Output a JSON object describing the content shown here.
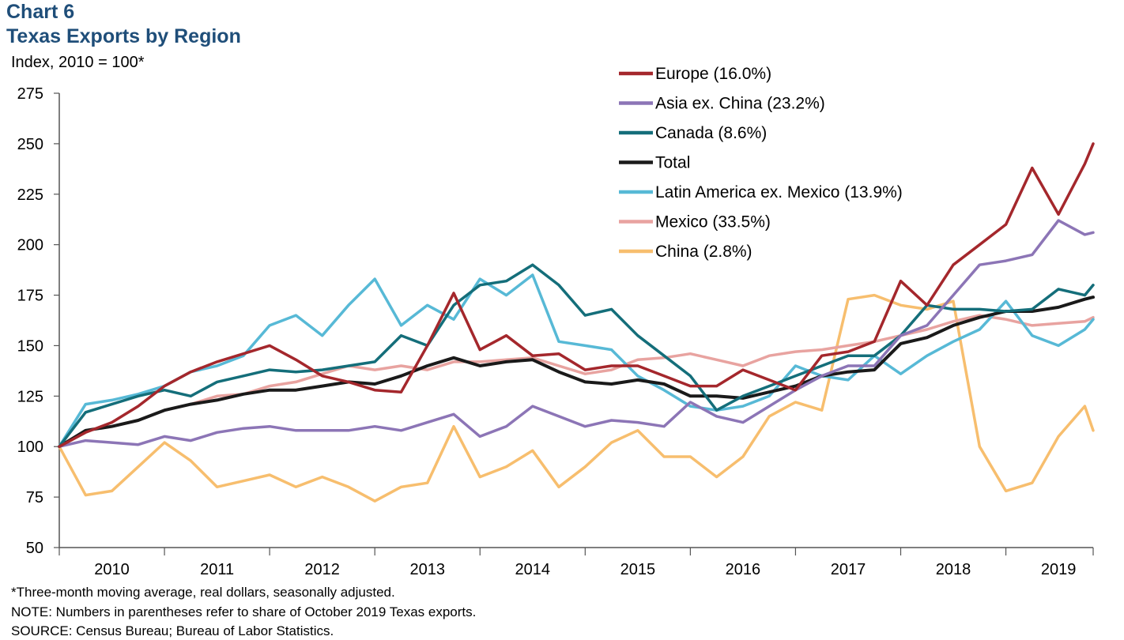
{
  "chart_number": "Chart 6",
  "title": "Texas Exports by Region",
  "footnotes": {
    "note1": "*Three-month moving average, real dollars, seasonally adjusted.",
    "note2": "NOTE: Numbers in parentheses refer to share of October 2019 Texas exports.",
    "source": "SOURCE: Census Bureau; Bureau of Labor Statistics."
  },
  "chart_data": {
    "type": "line",
    "title": "Texas Exports by Region",
    "ylabel": "Index, 2010 = 100*",
    "xlabel": "",
    "ylim": [
      50,
      275
    ],
    "yticks": [
      50,
      75,
      100,
      125,
      150,
      175,
      200,
      225,
      250,
      275
    ],
    "xlim": [
      2010.0,
      2019.83
    ],
    "xticks": [
      "2010",
      "2011",
      "2012",
      "2013",
      "2014",
      "2015",
      "2016",
      "2017",
      "2018",
      "2019"
    ],
    "grid": false,
    "legend": "top-right",
    "series": [
      {
        "name": "Europe (16.0%)",
        "color": "#a4272c",
        "points": [
          [
            2010.0,
            100
          ],
          [
            2010.25,
            107
          ],
          [
            2010.5,
            112
          ],
          [
            2010.75,
            120
          ],
          [
            2011.0,
            130
          ],
          [
            2011.25,
            137
          ],
          [
            2011.5,
            142
          ],
          [
            2011.75,
            146
          ],
          [
            2012.0,
            150
          ],
          [
            2012.25,
            143
          ],
          [
            2012.5,
            135
          ],
          [
            2012.75,
            132
          ],
          [
            2013.0,
            128
          ],
          [
            2013.25,
            127
          ],
          [
            2013.5,
            150
          ],
          [
            2013.75,
            176
          ],
          [
            2014.0,
            148
          ],
          [
            2014.25,
            155
          ],
          [
            2014.5,
            145
          ],
          [
            2014.75,
            146
          ],
          [
            2015.0,
            138
          ],
          [
            2015.25,
            140
          ],
          [
            2015.5,
            140
          ],
          [
            2015.75,
            135
          ],
          [
            2016.0,
            130
          ],
          [
            2016.25,
            130
          ],
          [
            2016.5,
            138
          ],
          [
            2016.75,
            133
          ],
          [
            2017.0,
            128
          ],
          [
            2017.25,
            145
          ],
          [
            2017.5,
            147
          ],
          [
            2017.75,
            152
          ],
          [
            2018.0,
            182
          ],
          [
            2018.25,
            170
          ],
          [
            2018.5,
            190
          ],
          [
            2018.75,
            200
          ],
          [
            2019.0,
            210
          ],
          [
            2019.25,
            238
          ],
          [
            2019.5,
            215
          ],
          [
            2019.75,
            240
          ],
          [
            2019.83,
            250
          ]
        ]
      },
      {
        "name": "Asia ex. China (23.2%)",
        "color": "#8c75b6",
        "points": [
          [
            2010.0,
            100
          ],
          [
            2010.25,
            103
          ],
          [
            2010.5,
            102
          ],
          [
            2010.75,
            101
          ],
          [
            2011.0,
            105
          ],
          [
            2011.25,
            103
          ],
          [
            2011.5,
            107
          ],
          [
            2011.75,
            109
          ],
          [
            2012.0,
            110
          ],
          [
            2012.25,
            108
          ],
          [
            2012.5,
            108
          ],
          [
            2012.75,
            108
          ],
          [
            2013.0,
            110
          ],
          [
            2013.25,
            108
          ],
          [
            2013.5,
            112
          ],
          [
            2013.75,
            116
          ],
          [
            2014.0,
            105
          ],
          [
            2014.25,
            110
          ],
          [
            2014.5,
            120
          ],
          [
            2014.75,
            115
          ],
          [
            2015.0,
            110
          ],
          [
            2015.25,
            113
          ],
          [
            2015.5,
            112
          ],
          [
            2015.75,
            110
          ],
          [
            2016.0,
            122
          ],
          [
            2016.25,
            115
          ],
          [
            2016.5,
            112
          ],
          [
            2016.75,
            120
          ],
          [
            2017.0,
            128
          ],
          [
            2017.25,
            135
          ],
          [
            2017.5,
            140
          ],
          [
            2017.75,
            140
          ],
          [
            2018.0,
            155
          ],
          [
            2018.25,
            160
          ],
          [
            2018.5,
            175
          ],
          [
            2018.75,
            190
          ],
          [
            2019.0,
            192
          ],
          [
            2019.25,
            195
          ],
          [
            2019.5,
            212
          ],
          [
            2019.75,
            205
          ],
          [
            2019.83,
            206
          ]
        ]
      },
      {
        "name": "Canada (8.6%)",
        "color": "#146e7a",
        "points": [
          [
            2010.0,
            100
          ],
          [
            2010.25,
            117
          ],
          [
            2010.5,
            121
          ],
          [
            2010.75,
            125
          ],
          [
            2011.0,
            128
          ],
          [
            2011.25,
            125
          ],
          [
            2011.5,
            132
          ],
          [
            2011.75,
            135
          ],
          [
            2012.0,
            138
          ],
          [
            2012.25,
            137
          ],
          [
            2012.5,
            138
          ],
          [
            2012.75,
            140
          ],
          [
            2013.0,
            142
          ],
          [
            2013.25,
            155
          ],
          [
            2013.5,
            150
          ],
          [
            2013.75,
            170
          ],
          [
            2014.0,
            180
          ],
          [
            2014.25,
            182
          ],
          [
            2014.5,
            190
          ],
          [
            2014.75,
            180
          ],
          [
            2015.0,
            165
          ],
          [
            2015.25,
            168
          ],
          [
            2015.5,
            155
          ],
          [
            2015.75,
            145
          ],
          [
            2016.0,
            135
          ],
          [
            2016.25,
            118
          ],
          [
            2016.5,
            125
          ],
          [
            2016.75,
            130
          ],
          [
            2017.0,
            135
          ],
          [
            2017.25,
            140
          ],
          [
            2017.5,
            145
          ],
          [
            2017.75,
            145
          ],
          [
            2018.0,
            155
          ],
          [
            2018.25,
            170
          ],
          [
            2018.5,
            168
          ],
          [
            2018.75,
            168
          ],
          [
            2019.0,
            167
          ],
          [
            2019.25,
            168
          ],
          [
            2019.5,
            178
          ],
          [
            2019.75,
            175
          ],
          [
            2019.83,
            180
          ]
        ]
      },
      {
        "name": "Total",
        "color": "#1a1a1a",
        "points": [
          [
            2010.0,
            100
          ],
          [
            2010.25,
            108
          ],
          [
            2010.5,
            110
          ],
          [
            2010.75,
            113
          ],
          [
            2011.0,
            118
          ],
          [
            2011.25,
            121
          ],
          [
            2011.5,
            123
          ],
          [
            2011.75,
            126
          ],
          [
            2012.0,
            128
          ],
          [
            2012.25,
            128
          ],
          [
            2012.5,
            130
          ],
          [
            2012.75,
            132
          ],
          [
            2013.0,
            131
          ],
          [
            2013.25,
            135
          ],
          [
            2013.5,
            140
          ],
          [
            2013.75,
            144
          ],
          [
            2014.0,
            140
          ],
          [
            2014.25,
            142
          ],
          [
            2014.5,
            143
          ],
          [
            2014.75,
            137
          ],
          [
            2015.0,
            132
          ],
          [
            2015.25,
            131
          ],
          [
            2015.5,
            133
          ],
          [
            2015.75,
            131
          ],
          [
            2016.0,
            125
          ],
          [
            2016.25,
            125
          ],
          [
            2016.5,
            124
          ],
          [
            2016.75,
            127
          ],
          [
            2017.0,
            130
          ],
          [
            2017.25,
            135
          ],
          [
            2017.5,
            137
          ],
          [
            2017.75,
            138
          ],
          [
            2018.0,
            151
          ],
          [
            2018.25,
            154
          ],
          [
            2018.5,
            160
          ],
          [
            2018.75,
            164
          ],
          [
            2019.0,
            167
          ],
          [
            2019.25,
            167
          ],
          [
            2019.5,
            169
          ],
          [
            2019.75,
            173
          ],
          [
            2019.83,
            174
          ]
        ]
      },
      {
        "name": "Latin America ex. Mexico (13.9%)",
        "color": "#57b9d6",
        "points": [
          [
            2010.0,
            100
          ],
          [
            2010.25,
            121
          ],
          [
            2010.5,
            123
          ],
          [
            2010.75,
            126
          ],
          [
            2011.0,
            130
          ],
          [
            2011.25,
            137
          ],
          [
            2011.5,
            140
          ],
          [
            2011.75,
            145
          ],
          [
            2012.0,
            160
          ],
          [
            2012.25,
            165
          ],
          [
            2012.5,
            155
          ],
          [
            2012.75,
            170
          ],
          [
            2013.0,
            183
          ],
          [
            2013.25,
            160
          ],
          [
            2013.5,
            170
          ],
          [
            2013.75,
            163
          ],
          [
            2014.0,
            183
          ],
          [
            2014.25,
            175
          ],
          [
            2014.5,
            185
          ],
          [
            2014.75,
            152
          ],
          [
            2015.0,
            150
          ],
          [
            2015.25,
            148
          ],
          [
            2015.5,
            135
          ],
          [
            2015.75,
            128
          ],
          [
            2016.0,
            120
          ],
          [
            2016.25,
            118
          ],
          [
            2016.5,
            120
          ],
          [
            2016.75,
            125
          ],
          [
            2017.0,
            140
          ],
          [
            2017.25,
            135
          ],
          [
            2017.5,
            133
          ],
          [
            2017.75,
            145
          ],
          [
            2018.0,
            136
          ],
          [
            2018.25,
            145
          ],
          [
            2018.5,
            152
          ],
          [
            2018.75,
            158
          ],
          [
            2019.0,
            172
          ],
          [
            2019.25,
            155
          ],
          [
            2019.5,
            150
          ],
          [
            2019.75,
            158
          ],
          [
            2019.83,
            163
          ]
        ]
      },
      {
        "name": "Mexico (33.5%)",
        "color": "#e8a3a0",
        "points": [
          [
            2010.0,
            100
          ],
          [
            2010.25,
            108
          ],
          [
            2010.5,
            110
          ],
          [
            2010.75,
            113
          ],
          [
            2011.0,
            118
          ],
          [
            2011.25,
            121
          ],
          [
            2011.5,
            125
          ],
          [
            2011.75,
            126
          ],
          [
            2012.0,
            130
          ],
          [
            2012.25,
            132
          ],
          [
            2012.5,
            136
          ],
          [
            2012.75,
            140
          ],
          [
            2013.0,
            138
          ],
          [
            2013.25,
            140
          ],
          [
            2013.5,
            138
          ],
          [
            2013.75,
            142
          ],
          [
            2014.0,
            142
          ],
          [
            2014.25,
            143
          ],
          [
            2014.5,
            144
          ],
          [
            2014.75,
            140
          ],
          [
            2015.0,
            136
          ],
          [
            2015.25,
            138
          ],
          [
            2015.5,
            143
          ],
          [
            2015.75,
            144
          ],
          [
            2016.0,
            146
          ],
          [
            2016.25,
            143
          ],
          [
            2016.5,
            140
          ],
          [
            2016.75,
            145
          ],
          [
            2017.0,
            147
          ],
          [
            2017.25,
            148
          ],
          [
            2017.5,
            150
          ],
          [
            2017.75,
            152
          ],
          [
            2018.0,
            155
          ],
          [
            2018.25,
            158
          ],
          [
            2018.5,
            162
          ],
          [
            2018.75,
            165
          ],
          [
            2019.0,
            163
          ],
          [
            2019.25,
            160
          ],
          [
            2019.5,
            161
          ],
          [
            2019.75,
            162
          ],
          [
            2019.83,
            164
          ]
        ]
      },
      {
        "name": "China (2.8%)",
        "color": "#f7be6e",
        "points": [
          [
            2010.0,
            100
          ],
          [
            2010.25,
            76
          ],
          [
            2010.5,
            78
          ],
          [
            2010.75,
            90
          ],
          [
            2011.0,
            102
          ],
          [
            2011.25,
            93
          ],
          [
            2011.5,
            80
          ],
          [
            2011.75,
            83
          ],
          [
            2012.0,
            86
          ],
          [
            2012.25,
            80
          ],
          [
            2012.5,
            85
          ],
          [
            2012.75,
            80
          ],
          [
            2013.0,
            73
          ],
          [
            2013.25,
            80
          ],
          [
            2013.5,
            82
          ],
          [
            2013.75,
            110
          ],
          [
            2014.0,
            85
          ],
          [
            2014.25,
            90
          ],
          [
            2014.5,
            98
          ],
          [
            2014.75,
            80
          ],
          [
            2015.0,
            90
          ],
          [
            2015.25,
            102
          ],
          [
            2015.5,
            108
          ],
          [
            2015.75,
            95
          ],
          [
            2016.0,
            95
          ],
          [
            2016.25,
            85
          ],
          [
            2016.5,
            95
          ],
          [
            2016.75,
            115
          ],
          [
            2017.0,
            122
          ],
          [
            2017.25,
            118
          ],
          [
            2017.5,
            173
          ],
          [
            2017.75,
            175
          ],
          [
            2018.0,
            170
          ],
          [
            2018.25,
            168
          ],
          [
            2018.5,
            172
          ],
          [
            2018.75,
            100
          ],
          [
            2019.0,
            78
          ],
          [
            2019.25,
            82
          ],
          [
            2019.5,
            105
          ],
          [
            2019.75,
            120
          ],
          [
            2019.83,
            108
          ]
        ]
      }
    ]
  }
}
